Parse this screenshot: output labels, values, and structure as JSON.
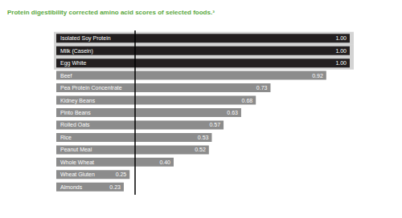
{
  "chart_data": {
    "type": "bar",
    "title": "Protein digestibility corrected amino acid scores of selected foods.³",
    "orientation": "horizontal",
    "categories": [
      "Isolated Soy Protein",
      "Milk (Casein)",
      "Egg White",
      "Beef",
      "Pea Protein Concentrate",
      "Kidney Beans",
      "Pinto Beans",
      "Rolled Oats",
      "Rice",
      "Peanut Meal",
      "Whole Wheat",
      "Wheat Gluten",
      "Almonds"
    ],
    "values": [
      1.0,
      1.0,
      1.0,
      0.92,
      0.73,
      0.68,
      0.63,
      0.57,
      0.53,
      0.52,
      0.4,
      0.25,
      0.23
    ],
    "value_labels": [
      "1.00",
      "1.00",
      "1.00",
      "0.92",
      "0.73",
      "0.68",
      "0.63",
      "0.57",
      "0.53",
      "0.52",
      "0.40",
      "0.25",
      "0.23"
    ],
    "colors": [
      "#231f20",
      "#231f20",
      "#231f20",
      "#8c8c8c",
      "#8c8c8c",
      "#8c8c8c",
      "#8c8c8c",
      "#8c8c8c",
      "#8c8c8c",
      "#8c8c8c",
      "#8c8c8c",
      "#8c8c8c",
      "#8c8c8c"
    ],
    "xlim": [
      0,
      1.0
    ],
    "data_labels": true,
    "tick_labels": false,
    "grid": false
  }
}
